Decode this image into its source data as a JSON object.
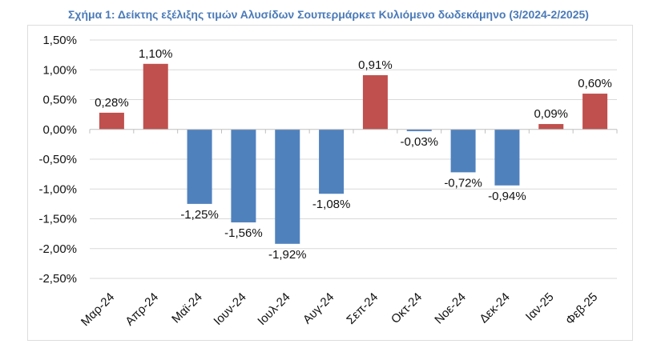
{
  "chart_data": {
    "type": "bar",
    "title": "Σχήμα 1: Δείκτης εξέλιξης τιμών Αλυσίδων Σουπερμάρκετ Κυλιόμενο δωδεκάμηνο (3/2024-2/2025)",
    "categories": [
      "Μαρ-24",
      "Απρ-24",
      "Μαϊ-24",
      "Ιουν-24",
      "Ιουλ-24",
      "Αυγ-24",
      "Σεπ-24",
      "Οκτ-24",
      "Νοε-24",
      "Δεκ-24",
      "Ιαν-25",
      "Φεβ-25"
    ],
    "values": [
      0.28,
      1.1,
      -1.25,
      -1.56,
      -1.92,
      -1.08,
      0.91,
      -0.03,
      -0.72,
      -0.94,
      0.09,
      0.6
    ],
    "data_labels": [
      "0,28%",
      "1,10%",
      "-1,25%",
      "-1,56%",
      "-1,92%",
      "-1,08%",
      "0,91%",
      "-0,03%",
      "-0,72%",
      "-0,94%",
      "0,09%",
      "0,60%"
    ],
    "ylim": [
      -2.5,
      1.5
    ],
    "yticks": [
      "1,50%",
      "1,00%",
      "0,50%",
      "0,00%",
      "-0,50%",
      "-1,00%",
      "-1,50%",
      "-2,00%",
      "-2,50%"
    ],
    "grid": true,
    "colors": {
      "positive": "#C0504D",
      "negative": "#4F81BD"
    }
  }
}
